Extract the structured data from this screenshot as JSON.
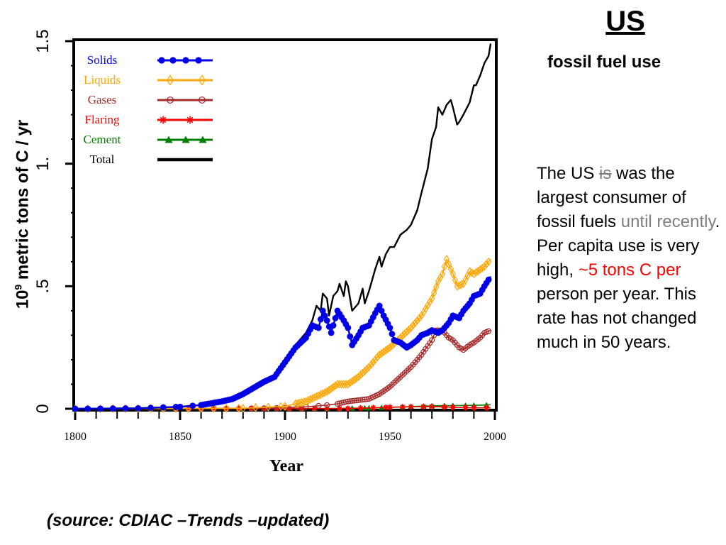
{
  "slide": {
    "title": "US",
    "subtitle": "fossil fuel use",
    "body": {
      "p1": "The US ",
      "p2_struck": "is",
      "p3": " was the largest consumer of fossil fuels ",
      "p4_gray": "until recently",
      "p5": ".  Per capita use is very high, ",
      "p6_red": "~5 tons C per",
      "p7": " person per year.  This rate has not changed much in 50 years."
    },
    "source": "(source:  CDIAC –Trends –updated)"
  },
  "chart_data": {
    "type": "line",
    "xlabel": "Year",
    "ylabel_base": "10",
    "ylabel_exp": "9",
    "ylabel_rest": " metric tons of C / yr",
    "xlim": [
      1800,
      2000
    ],
    "ylim": [
      0,
      1.5
    ],
    "x_ticks": [
      1800,
      1850,
      1900,
      1950,
      2000
    ],
    "y_ticks": [
      {
        "v": 0,
        "label": "0"
      },
      {
        "v": 0.5,
        "label": ".5"
      },
      {
        "v": 1.0,
        "label": "1."
      },
      {
        "v": 1.5,
        "label": "1.5"
      }
    ],
    "grid": false,
    "legend_position": "top-left",
    "series": [
      {
        "name": "Solids",
        "color": "#0000e6",
        "marker": "dot",
        "x": [
          1800,
          1830,
          1850,
          1860,
          1870,
          1875,
          1880,
          1885,
          1890,
          1895,
          1900,
          1905,
          1910,
          1913,
          1916,
          1918,
          1920,
          1922,
          1925,
          1928,
          1930,
          1932,
          1935,
          1937,
          1940,
          1943,
          1945,
          1947,
          1950,
          1952,
          1955,
          1958,
          1960,
          1963,
          1965,
          1968,
          1970,
          1973,
          1975,
          1978,
          1980,
          1983,
          1985,
          1988,
          1990,
          1993,
          1995,
          1998
        ],
        "y": [
          0.0,
          0.002,
          0.008,
          0.015,
          0.03,
          0.04,
          0.06,
          0.085,
          0.11,
          0.13,
          0.19,
          0.25,
          0.29,
          0.34,
          0.33,
          0.4,
          0.36,
          0.31,
          0.4,
          0.36,
          0.33,
          0.26,
          0.3,
          0.33,
          0.34,
          0.39,
          0.42,
          0.38,
          0.33,
          0.28,
          0.27,
          0.25,
          0.26,
          0.28,
          0.3,
          0.31,
          0.32,
          0.31,
          0.32,
          0.35,
          0.38,
          0.37,
          0.4,
          0.43,
          0.46,
          0.47,
          0.5,
          0.54
        ]
      },
      {
        "name": "Liquids",
        "color": "#ffa500",
        "marker": "diamond",
        "x": [
          1800,
          1880,
          1900,
          1905,
          1910,
          1915,
          1920,
          1925,
          1930,
          1935,
          1940,
          1945,
          1950,
          1955,
          1960,
          1965,
          1970,
          1973,
          1975,
          1977,
          1980,
          1982,
          1985,
          1988,
          1990,
          1995,
          1998
        ],
        "y": [
          0.0,
          0.002,
          0.01,
          0.02,
          0.03,
          0.05,
          0.07,
          0.1,
          0.1,
          0.13,
          0.17,
          0.22,
          0.25,
          0.29,
          0.33,
          0.38,
          0.45,
          0.52,
          0.55,
          0.61,
          0.55,
          0.5,
          0.51,
          0.56,
          0.55,
          0.58,
          0.61
        ]
      },
      {
        "name": "Gases",
        "color": "#a52a2a",
        "marker": "circle",
        "x": [
          1800,
          1890,
          1900,
          1910,
          1920,
          1925,
          1930,
          1935,
          1940,
          1945,
          1950,
          1955,
          1960,
          1965,
          1970,
          1972,
          1975,
          1978,
          1980,
          1983,
          1985,
          1988,
          1990,
          1993,
          1995,
          1998
        ],
        "y": [
          0.0,
          0.002,
          0.004,
          0.008,
          0.015,
          0.02,
          0.03,
          0.035,
          0.04,
          0.06,
          0.09,
          0.13,
          0.17,
          0.22,
          0.28,
          0.32,
          0.32,
          0.29,
          0.28,
          0.25,
          0.24,
          0.26,
          0.27,
          0.29,
          0.31,
          0.32
        ]
      },
      {
        "name": "Flaring",
        "color": "#ff0000",
        "marker": "star",
        "x": [
          1800,
          1930,
          1950,
          1960,
          1970,
          1980,
          1990,
          1998
        ],
        "y": [
          0.0,
          0.001,
          0.006,
          0.008,
          0.009,
          0.006,
          0.004,
          0.004
        ]
      },
      {
        "name": "Cement",
        "color": "#008000",
        "marker": "triangle",
        "x": [
          1800,
          1920,
          1940,
          1950,
          1960,
          1970,
          1980,
          1990,
          1998
        ],
        "y": [
          0.0,
          0.001,
          0.003,
          0.006,
          0.009,
          0.012,
          0.013,
          0.014,
          0.016
        ]
      },
      {
        "name": "Total",
        "color": "#000000",
        "marker": "none",
        "x": [
          1800,
          1830,
          1850,
          1860,
          1870,
          1875,
          1880,
          1885,
          1890,
          1895,
          1900,
          1905,
          1910,
          1913,
          1915,
          1917,
          1918,
          1920,
          1921,
          1923,
          1925,
          1926,
          1928,
          1929,
          1930,
          1932,
          1935,
          1937,
          1938,
          1940,
          1943,
          1945,
          1946,
          1948,
          1950,
          1952,
          1955,
          1958,
          1960,
          1963,
          1965,
          1968,
          1970,
          1972,
          1973,
          1975,
          1977,
          1979,
          1980,
          1982,
          1983,
          1985,
          1988,
          1990,
          1991,
          1993,
          1995,
          1997,
          1998
        ],
        "y": [
          0.0,
          0.002,
          0.008,
          0.015,
          0.03,
          0.04,
          0.06,
          0.085,
          0.11,
          0.13,
          0.19,
          0.26,
          0.31,
          0.36,
          0.42,
          0.4,
          0.47,
          0.45,
          0.38,
          0.46,
          0.48,
          0.51,
          0.46,
          0.52,
          0.5,
          0.4,
          0.43,
          0.49,
          0.43,
          0.48,
          0.57,
          0.62,
          0.58,
          0.63,
          0.66,
          0.66,
          0.71,
          0.73,
          0.75,
          0.81,
          0.88,
          0.98,
          1.1,
          1.15,
          1.23,
          1.2,
          1.24,
          1.26,
          1.23,
          1.16,
          1.17,
          1.2,
          1.25,
          1.32,
          1.32,
          1.36,
          1.41,
          1.44,
          1.49
        ]
      }
    ]
  }
}
